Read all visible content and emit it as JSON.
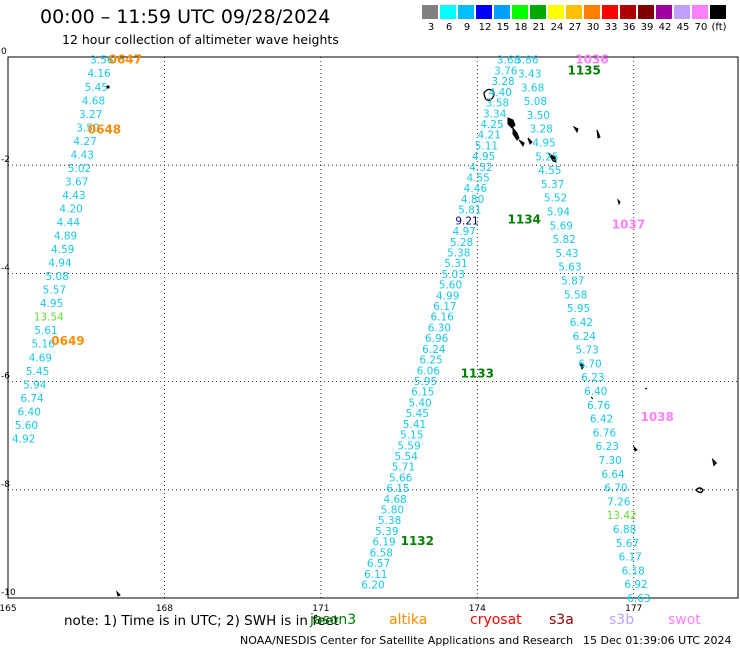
{
  "title": "00:00 – 11:59 UTC 09/28/2024",
  "subtitle": "12 hour collection of altimeter wave heights",
  "colorbar": {
    "colors": [
      "#808080",
      "#00ffff",
      "#00bfff",
      "#0000ff",
      "#00a0ff",
      "#00ff00",
      "#00aa00",
      "#ffff00",
      "#ffc000",
      "#ff8000",
      "#ff0000",
      "#b00000",
      "#800000",
      "#a000a0",
      "#c0a0ff",
      "#ff80ff",
      "#000000"
    ],
    "labels": [
      "3",
      "6",
      "9",
      "12",
      "15",
      "18",
      "21",
      "24",
      "27",
      "30",
      "33",
      "36",
      "39",
      "42",
      "45",
      "70",
      "(ft)"
    ]
  },
  "chart_data": {
    "type": "scatter",
    "title": "00:00 – 11:59 UTC 09/28/2024",
    "subtitle": "12 hour collection of altimeter wave heights",
    "xlabel": "",
    "ylabel": "",
    "x_ticks": [
      "165",
      "168",
      "171",
      "174",
      "177"
    ],
    "y_ticks": [
      "0",
      "-2",
      "-4",
      "-6",
      "-8",
      "-10"
    ],
    "xlim": [
      165,
      179
    ],
    "ylim": [
      -10,
      0
    ],
    "grid": true,
    "units": "ft",
    "tracks": [
      {
        "satellite": "altika",
        "x_start": 166.8,
        "y_start": -0.05,
        "x_end": 165.3,
        "y_end": -7.05,
        "values": [
          "3.56",
          "4.16",
          "5.45",
          "4.68",
          "3.27",
          "3.50",
          "4.27",
          "4.43",
          "5.02",
          "3.67",
          "4.43",
          "4.20",
          "4.44",
          "4.89",
          "4.59",
          "4.94",
          "5.08",
          "5.57",
          "4.95",
          "13.54",
          "5.61",
          "5.16",
          "4.69",
          "5.45",
          "5.94",
          "6.74",
          "6.40",
          "5.60",
          "4.92"
        ],
        "time_labels": [
          {
            "text": "0647",
            "x": 167.25,
            "y": -0.05
          },
          {
            "text": "0648",
            "x": 166.85,
            "y": -1.34
          },
          {
            "text": "0649",
            "x": 166.15,
            "y": -5.25
          }
        ]
      },
      {
        "satellite": "jason3",
        "x_start": 174.6,
        "y_start": -0.05,
        "x_end": 172.0,
        "y_end": -9.75,
        "values": [
          "3.68",
          "3.76",
          "3.28",
          "4.40",
          "3.58",
          "3.34",
          "4.25",
          "4.21",
          "5.11",
          "4.95",
          "4.52",
          "4.55",
          "4.46",
          "4.80",
          "5.81",
          "9.21",
          "4.97",
          "5.28",
          "5.38",
          "5.31",
          "5.03",
          "5.60",
          "4.99",
          "6.17",
          "6.16",
          "6.30",
          "6.96",
          "6.24",
          "6.25",
          "6.06",
          "5.95",
          "6.15",
          "5.40",
          "5.45",
          "5.41",
          "5.15",
          "5.59",
          "5.54",
          "5.71",
          "5.66",
          "6.15",
          "4.68",
          "5.80",
          "5.38",
          "5.39",
          "6.19",
          "6.58",
          "6.57",
          "6.11",
          "6.20"
        ],
        "time_labels": [
          {
            "text": "1135",
            "x": 176.05,
            "y": -0.25
          },
          {
            "text": "1134",
            "x": 174.9,
            "y": -3.0
          },
          {
            "text": "1133",
            "x": 174.0,
            "y": -5.85
          },
          {
            "text": "1132",
            "x": 172.85,
            "y": -8.95
          }
        ]
      },
      {
        "satellite": "swot",
        "x_start": 174.95,
        "y_start": -0.05,
        "x_end": 177.1,
        "y_end": -10.0,
        "values": [
          "3.86",
          "3.43",
          "3.68",
          "5.08",
          "3.50",
          "3.28",
          "4.95",
          "5.25",
          "4.55",
          "5.37",
          "5.52",
          "5.94",
          "5.69",
          "5.82",
          "5.43",
          "5.63",
          "5.87",
          "5.58",
          "5.95",
          "6.42",
          "6.24",
          "5.73",
          "6.70",
          "6.23",
          "6.40",
          "6.76",
          "6.42",
          "6.76",
          "6.23",
          "7.30",
          "6.64",
          "6.70",
          "7.26",
          "13.42",
          "6.88",
          "5.67",
          "6.17",
          "6.18",
          "6.92",
          "6.63"
        ],
        "time_labels": [
          {
            "text": "1036",
            "x": 176.2,
            "y": -0.05
          },
          {
            "text": "1037",
            "x": 176.9,
            "y": -3.1
          },
          {
            "text": "1038",
            "x": 177.45,
            "y": -6.65
          }
        ]
      }
    ]
  },
  "note": "note:  1) Time is in UTC; 2) SWH is in feet",
  "legend": [
    {
      "name": "jason3",
      "color": "#008000"
    },
    {
      "name": "altika",
      "color": "#ff8c00"
    },
    {
      "name": "cryosat",
      "color": "#ff0000"
    },
    {
      "name": "s3a",
      "color": "#8b0000"
    },
    {
      "name": "s3b",
      "color": "#c0a0ff"
    },
    {
      "name": "swot",
      "color": "#ff80ff"
    }
  ],
  "footer_left": "NOAA/NESDIS Center for Satellite Applications and Research",
  "footer_right": "15 Dec 01:39:06 UTC 2024"
}
